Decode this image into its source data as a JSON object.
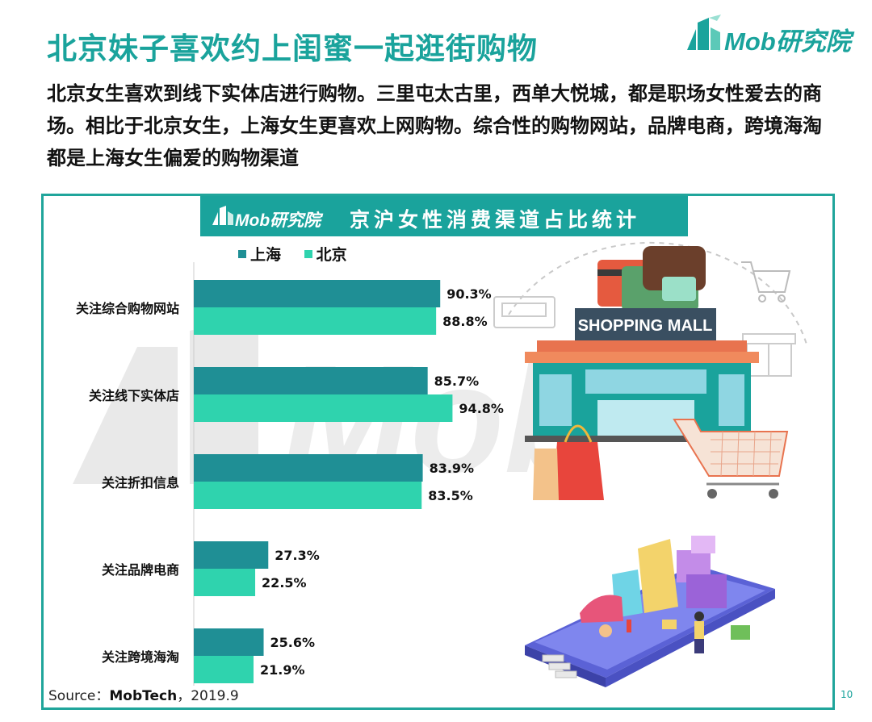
{
  "header": {
    "title": "北京妹子喜欢约上闺蜜一起逛街购物",
    "logo_text": "Mob研究院",
    "description": "北京女生喜欢到线下实体店进行购物。三里屯太古里，西单大悦城，都是职场女性爱去的商场。相比于北京女生，上海女生更喜欢上网购物。综合性的购物网站，品牌电商，跨境海淘都是上海女生偏爱的购物渠道"
  },
  "banner": {
    "logo_text": "Mob研究院",
    "title": "京沪女性消费渠道占比统计"
  },
  "illustration": {
    "mall_sign": "SHOPPING MALL",
    "watermark": "Mob"
  },
  "colors": {
    "accent": "#1aa39c",
    "shanghai": "#1f8f95",
    "beijing": "#2fd3ae"
  },
  "chart_data": {
    "type": "bar",
    "orientation": "horizontal",
    "categories": [
      "关注综合购物网站",
      "关注线下实体店",
      "关注折扣信息",
      "关注品牌电商",
      "关注跨境海淘"
    ],
    "series": [
      {
        "name": "上海",
        "values": [
          90.3,
          85.7,
          83.9,
          27.3,
          25.6
        ],
        "labels": [
          "90.3%",
          "85.7%",
          "83.9%",
          "27.3%",
          "25.6%"
        ]
      },
      {
        "name": "北京",
        "values": [
          88.8,
          94.8,
          83.5,
          22.5,
          21.9
        ],
        "labels": [
          "88.8%",
          "94.8%",
          "83.5%",
          "22.5%",
          "21.9%"
        ]
      }
    ],
    "legend_position": "top-left"
  },
  "footer": {
    "source_prefix": "Source：",
    "source_name": "MobTech",
    "source_suffix": "，2019.9",
    "page_number": "10"
  }
}
